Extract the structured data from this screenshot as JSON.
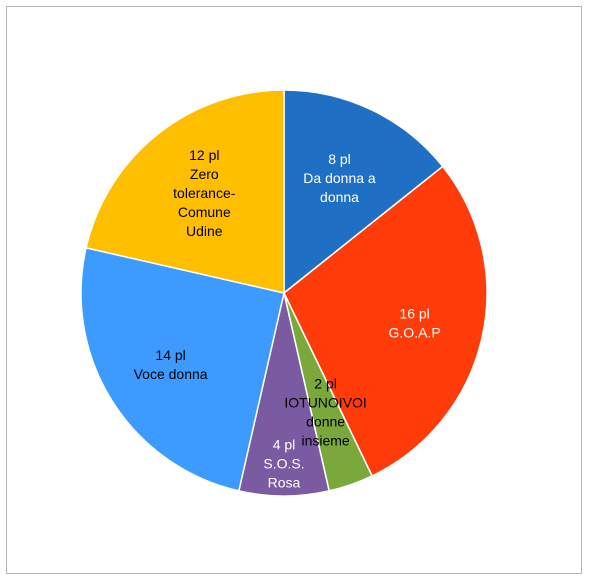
{
  "chart_data": {
    "type": "pie",
    "title": "",
    "start_angle_deg": 0,
    "direction": "clockwise",
    "slices": [
      {
        "value": 8,
        "unit_label": "8 pl",
        "name_lines": [
          "Da donna a",
          "donna"
        ],
        "color": "#1f6fc4",
        "label_color": "#ffffff"
      },
      {
        "value": 16,
        "unit_label": "16 pl",
        "name_lines": [
          "G.O.A.P"
        ],
        "color": "#ff3b0a",
        "label_color": "#ffffff"
      },
      {
        "value": 2,
        "unit_label": "2 pl",
        "name_lines": [
          "IOTUNOIVOI",
          "donne",
          "insieme"
        ],
        "color": "#7ba83a",
        "label_color": "#000000"
      },
      {
        "value": 4,
        "unit_label": "4 pl",
        "name_lines": [
          "S.O.S.",
          "Rosa"
        ],
        "color": "#7a5aa0",
        "label_color": "#ffffff"
      },
      {
        "value": 14,
        "unit_label": "14 pl",
        "name_lines": [
          "Voce donna"
        ],
        "color": "#3d9bff",
        "label_color": "#000000"
      },
      {
        "value": 12,
        "unit_label": "12 pl",
        "name_lines": [
          "Zero",
          "tolerance-",
          "Comune",
          "Udine"
        ],
        "color": "#ffbf00",
        "label_color": "#000000"
      }
    ],
    "stroke_color": "#ffffff"
  }
}
